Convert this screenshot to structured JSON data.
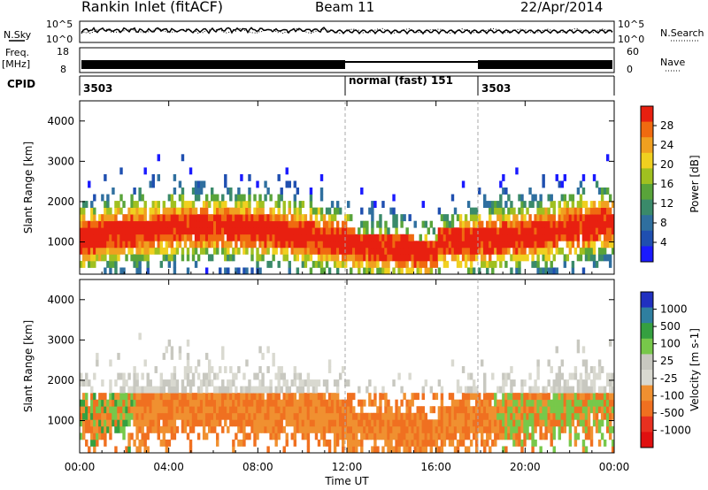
{
  "header": {
    "station": "Rankin Inlet (fitACF)",
    "beam": "Beam 11",
    "date": "22/Apr/2014"
  },
  "labels": {
    "nsky": "N.Sky",
    "nsky_top": "10^5",
    "nsky_bottom": "10^0",
    "nsearch": "N.Search",
    "nsearch_top": "10^5",
    "nsearch_bottom": "10^0",
    "freq": "Freq.",
    "freq_unit": "[MHz]",
    "freq_top": "18",
    "freq_bottom": "8",
    "nave": "Nave",
    "nave_top": "60",
    "nave_bottom": "0",
    "cpid": "CPID",
    "cpid_1": "3503",
    "cpid_2": "normal (fast) 151",
    "cpid_3": "3503",
    "power_ylabel": "Slant Range [km]",
    "velocity_ylabel": "Slant Range [km]",
    "xlabel": "Time UT"
  },
  "colors": {
    "power_scale": [
      "#1a1aff",
      "#1f4fb0",
      "#2f6f9f",
      "#3a8a6a",
      "#59a43a",
      "#a0c020",
      "#f0d020",
      "#f0a020",
      "#f06a10",
      "#e82010"
    ],
    "velocity_scale": [
      "#2030c0",
      "#2f7fa0",
      "#35a040",
      "#77c84a",
      "#c8c8c0",
      "#d9d9d0",
      "#f09030",
      "#f07020",
      "#e83020",
      "#e01010"
    ]
  },
  "chart_data": [
    {
      "type": "heatmap",
      "name_panel": "power",
      "x_ticks": [
        "00:00",
        "04:00",
        "08:00",
        "12:00",
        "16:00",
        "20:00",
        "00:00"
      ],
      "y_ticks": [
        "1000",
        "2000",
        "3000",
        "4000"
      ],
      "ylim": [
        200,
        4500
      ],
      "colorbar_ticks": [
        "4",
        "8",
        "12",
        "16",
        "20",
        "24",
        "28"
      ],
      "colorbar_label": "Power [dB]"
    },
    {
      "type": "heatmap",
      "name_panel": "velocity",
      "x_ticks": [
        "00:00",
        "04:00",
        "08:00",
        "12:00",
        "16:00",
        "20:00",
        "00:00"
      ],
      "y_ticks": [
        "1000",
        "2000",
        "3000",
        "4000"
      ],
      "ylim": [
        200,
        4500
      ],
      "colorbar_ticks": [
        "1000",
        "500",
        "100",
        "25",
        "-25",
        "-100",
        "-500",
        "-1000"
      ],
      "colorbar_label": "Velocity [m s-1]"
    }
  ]
}
